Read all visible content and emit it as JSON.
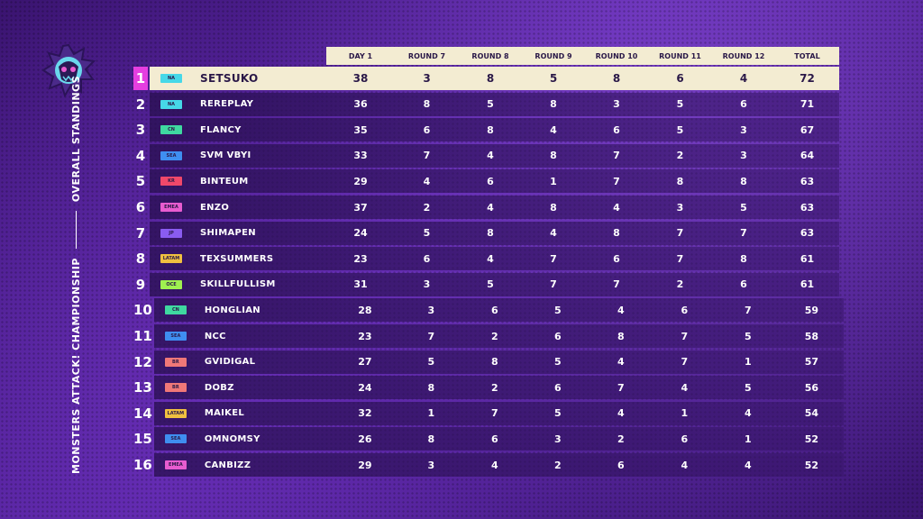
{
  "sidebar": {
    "title_left": "MONSTERS ATTACK! CHAMPIONSHIP",
    "title_right": "OVERALL STANDINGS"
  },
  "colors": {
    "NA": "#46d8e8",
    "CN": "#3fd9a0",
    "SEA": "#3f8ef0",
    "KR": "#f0486a",
    "EMEA": "#e85cd0",
    "JP": "#8a5cf0",
    "LATAM": "#f0c040",
    "OCE": "#9ff050",
    "BR": "#f07878"
  },
  "columns": [
    "DAY 1",
    "ROUND 7",
    "ROUND 8",
    "ROUND 9",
    "ROUND 10",
    "ROUND 11",
    "ROUND 12",
    "TOTAL"
  ],
  "rows": [
    {
      "rank": "1",
      "region": "NA",
      "name": "SETSUKO",
      "vals": [
        "38",
        "3",
        "8",
        "5",
        "8",
        "6",
        "4",
        "72"
      ]
    },
    {
      "rank": "2",
      "region": "NA",
      "name": "REREPLAY",
      "vals": [
        "36",
        "8",
        "5",
        "8",
        "3",
        "5",
        "6",
        "71"
      ]
    },
    {
      "rank": "3",
      "region": "CN",
      "name": "FLANCY",
      "vals": [
        "35",
        "6",
        "8",
        "4",
        "6",
        "5",
        "3",
        "67"
      ]
    },
    {
      "rank": "4",
      "region": "SEA",
      "name": "SVM VBYI",
      "vals": [
        "33",
        "7",
        "4",
        "8",
        "7",
        "2",
        "3",
        "64"
      ]
    },
    {
      "rank": "5",
      "region": "KR",
      "name": "BINTEUM",
      "vals": [
        "29",
        "4",
        "6",
        "1",
        "7",
        "8",
        "8",
        "63"
      ]
    },
    {
      "rank": "6",
      "region": "EMEA",
      "name": "ENZO",
      "vals": [
        "37",
        "2",
        "4",
        "8",
        "4",
        "3",
        "5",
        "63"
      ]
    },
    {
      "rank": "7",
      "region": "JP",
      "name": "SHIMAPEN",
      "vals": [
        "24",
        "5",
        "8",
        "4",
        "8",
        "7",
        "7",
        "63"
      ]
    },
    {
      "rank": "8",
      "region": "LATAM",
      "name": "TEXSUMMERS",
      "vals": [
        "23",
        "6",
        "4",
        "7",
        "6",
        "7",
        "8",
        "61"
      ]
    },
    {
      "rank": "9",
      "region": "OCE",
      "name": "SKILLFULLISM",
      "vals": [
        "31",
        "3",
        "5",
        "7",
        "7",
        "2",
        "6",
        "61"
      ]
    },
    {
      "rank": "10",
      "region": "CN",
      "name": "HONGLIAN",
      "vals": [
        "28",
        "3",
        "6",
        "5",
        "4",
        "6",
        "7",
        "59"
      ]
    },
    {
      "rank": "11",
      "region": "SEA",
      "name": "NCC",
      "vals": [
        "23",
        "7",
        "2",
        "6",
        "8",
        "7",
        "5",
        "58"
      ]
    },
    {
      "rank": "12",
      "region": "BR",
      "name": "GVIDIGAL",
      "vals": [
        "27",
        "5",
        "8",
        "5",
        "4",
        "7",
        "1",
        "57"
      ]
    },
    {
      "rank": "13",
      "region": "BR",
      "name": "DOBZ",
      "vals": [
        "24",
        "8",
        "2",
        "6",
        "7",
        "4",
        "5",
        "56"
      ]
    },
    {
      "rank": "14",
      "region": "LATAM",
      "name": "MAIKEL",
      "vals": [
        "32",
        "1",
        "7",
        "5",
        "4",
        "1",
        "4",
        "54"
      ]
    },
    {
      "rank": "15",
      "region": "SEA",
      "name": "OMNOMSY",
      "vals": [
        "26",
        "8",
        "6",
        "3",
        "2",
        "6",
        "1",
        "52"
      ]
    },
    {
      "rank": "16",
      "region": "EMEA",
      "name": "CANBIZZ",
      "vals": [
        "29",
        "3",
        "4",
        "2",
        "6",
        "4",
        "4",
        "52"
      ]
    }
  ]
}
